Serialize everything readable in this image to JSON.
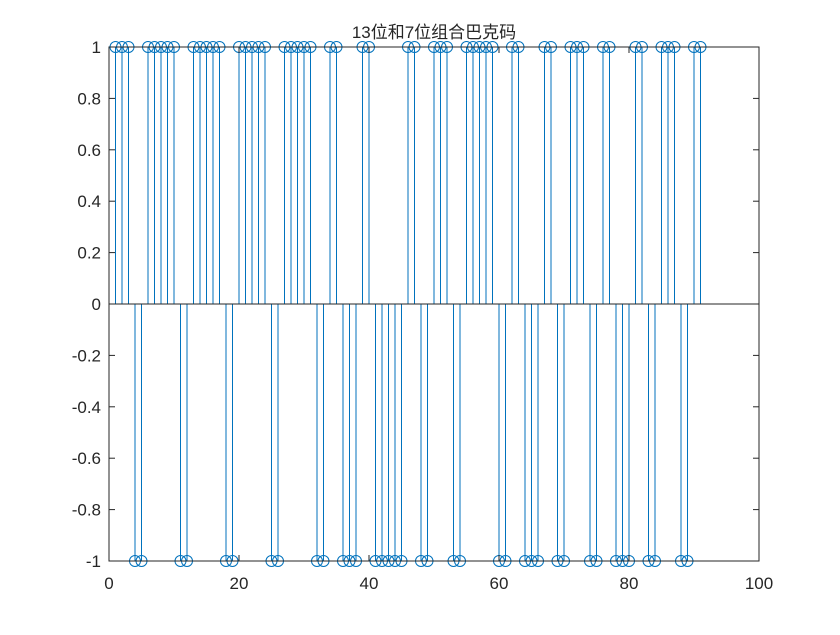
{
  "chart_data": {
    "type": "stem",
    "title": "13位和7位组合巴克码",
    "xlabel": "",
    "ylabel": "",
    "xlim": [
      0,
      100
    ],
    "ylim": [
      -1,
      1
    ],
    "x_ticks": [
      "0",
      "20",
      "40",
      "60",
      "80",
      "100"
    ],
    "y_ticks": [
      "1",
      "0.8",
      "0.6",
      "0.4",
      "0.2",
      "0",
      "-0.2",
      "-0.4",
      "-0.6",
      "-0.8",
      "-1"
    ],
    "grid": false,
    "series": [
      {
        "color": "#0072BD",
        "marker": "circle",
        "x": [
          1,
          2,
          3,
          4,
          5,
          6,
          7,
          8,
          9,
          10,
          11,
          12,
          13,
          14,
          15,
          16,
          17,
          18,
          19,
          20,
          21,
          22,
          23,
          24,
          25,
          26,
          27,
          28,
          29,
          30,
          31,
          32,
          33,
          34,
          35,
          36,
          37,
          38,
          39,
          40,
          41,
          42,
          43,
          44,
          45,
          46,
          47,
          48,
          49,
          50,
          51,
          52,
          53,
          54,
          55,
          56,
          57,
          58,
          59,
          60,
          61,
          62,
          63,
          64,
          65,
          66,
          67,
          68,
          69,
          70,
          71,
          72,
          73,
          74,
          75,
          76,
          77,
          78,
          79,
          80,
          81,
          82,
          83,
          84,
          85,
          86,
          87,
          88,
          89,
          90,
          91
        ],
        "values": [
          1,
          1,
          1,
          -1,
          -1,
          1,
          1,
          1,
          1,
          1,
          -1,
          -1,
          1,
          1,
          1,
          1,
          1,
          -1,
          -1,
          1,
          1,
          1,
          1,
          1,
          -1,
          -1,
          1,
          1,
          1,
          1,
          1,
          -1,
          -1,
          1,
          1,
          -1,
          -1,
          -1,
          1,
          1,
          -1,
          -1,
          -1,
          -1,
          -1,
          1,
          1,
          -1,
          -1,
          1,
          1,
          1,
          -1,
          -1,
          1,
          1,
          1,
          1,
          1,
          -1,
          -1,
          1,
          1,
          -1,
          -1,
          -1,
          1,
          1,
          -1,
          -1,
          1,
          1,
          1,
          -1,
          -1,
          1,
          1,
          -1,
          -1,
          -1,
          1,
          1,
          -1,
          -1,
          1,
          1,
          1,
          -1,
          -1,
          1,
          1
        ]
      }
    ]
  }
}
